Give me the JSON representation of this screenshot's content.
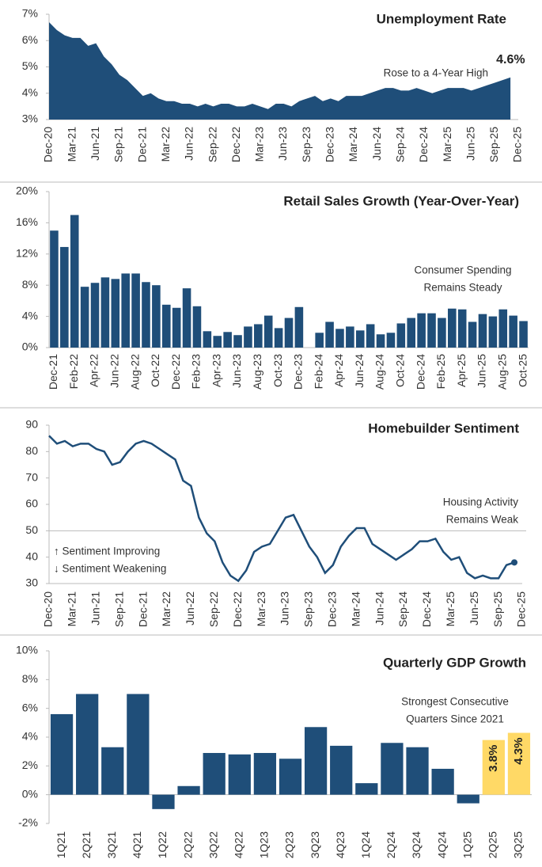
{
  "chart_data": [
    {
      "type": "area",
      "title": "Unemployment Rate",
      "color": "#1f4e79",
      "categories": [
        "Dec-20",
        null,
        null,
        "Mar-21",
        null,
        null,
        "Jun-21",
        null,
        null,
        "Sep-21",
        null,
        null,
        "Dec-21",
        null,
        null,
        "Mar-22",
        null,
        null,
        "Jun-22",
        null,
        null,
        "Sep-22",
        null,
        null,
        "Dec-22",
        null,
        null,
        "Mar-23",
        null,
        null,
        "Jun-23",
        null,
        null,
        "Sep-23",
        null,
        null,
        "Dec-23",
        null,
        null,
        "Mar-24",
        null,
        null,
        "Jun-24",
        null,
        null,
        "Sep-24",
        null,
        null,
        "Dec-24",
        null,
        null,
        "Mar-25",
        null,
        null,
        "Jun-25",
        null,
        null,
        "Sep-25",
        null,
        null,
        "Dec-25"
      ],
      "values": [
        6.7,
        6.4,
        6.2,
        6.1,
        6.1,
        5.8,
        5.9,
        5.4,
        5.1,
        4.7,
        4.5,
        4.2,
        3.9,
        4.0,
        3.8,
        3.7,
        3.7,
        3.6,
        3.6,
        3.5,
        3.6,
        3.5,
        3.6,
        3.6,
        3.5,
        3.5,
        3.6,
        3.5,
        3.4,
        3.6,
        3.6,
        3.5,
        3.7,
        3.8,
        3.9,
        3.7,
        3.8,
        3.7,
        3.9,
        3.9,
        3.9,
        4.0,
        4.1,
        4.2,
        4.2,
        4.1,
        4.1,
        4.2,
        4.1,
        4.0,
        4.1,
        4.2,
        4.2,
        4.2,
        4.1,
        4.2,
        4.3,
        4.4,
        4.5,
        4.6,
        null
      ],
      "value_labels": [
        null,
        null,
        null,
        null,
        null,
        null,
        null,
        null,
        null,
        null,
        null,
        null,
        null,
        null,
        null,
        null,
        null,
        null,
        null,
        null,
        null,
        null,
        null,
        null,
        null,
        null,
        null,
        null,
        null,
        null,
        null,
        null,
        null,
        null,
        null,
        null,
        null,
        null,
        null,
        null,
        null,
        null,
        null,
        null,
        null,
        null,
        null,
        null,
        null,
        null,
        null,
        null,
        null,
        null,
        null,
        null,
        null,
        null,
        null,
        "4.6%",
        null
      ],
      "ylim": [
        3,
        7
      ],
      "yticks": [
        {
          "value": 3,
          "label": "3%"
        },
        {
          "value": 4,
          "label": "4%"
        },
        {
          "value": 5,
          "label": "5%"
        },
        {
          "value": 6,
          "label": "6%"
        },
        {
          "value": 7,
          "label": "7%"
        }
      ],
      "annotations": [
        [
          "Rose to a 4-Year High"
        ]
      ]
    },
    {
      "type": "bar",
      "title": "Retail Sales Growth (Year-Over-Year)",
      "color": "#1f4e79",
      "categories": [
        "Dec-21",
        null,
        "Feb-22",
        null,
        "Apr-22",
        null,
        "Jun-22",
        null,
        "Aug-22",
        null,
        "Oct-22",
        null,
        "Dec-22",
        null,
        "Feb-23",
        null,
        "Apr-23",
        null,
        "Jun-23",
        null,
        "Aug-23",
        null,
        "Oct-23",
        null,
        "Dec-23",
        null,
        "Feb-24",
        null,
        "Apr-24",
        null,
        "Jun-24",
        null,
        "Aug-24",
        null,
        "Oct-24",
        null,
        "Dec-24",
        null,
        "Feb-25",
        null,
        "Apr-25",
        null,
        "Jun-25",
        null,
        "Aug-25",
        null,
        "Oct-25"
      ],
      "values": [
        15.0,
        12.9,
        17.0,
        7.8,
        8.3,
        9.0,
        8.8,
        9.5,
        9.5,
        8.4,
        8.0,
        5.5,
        5.1,
        7.6,
        5.3,
        2.1,
        1.5,
        2.0,
        1.6,
        2.7,
        3.0,
        4.1,
        2.5,
        3.8,
        5.2,
        null,
        1.9,
        3.3,
        2.4,
        2.7,
        2.2,
        3.0,
        1.7,
        1.9,
        3.1,
        3.8,
        4.4,
        4.4,
        3.8,
        5.0,
        4.9,
        3.3,
        4.3,
        4.0,
        4.9,
        4.1,
        3.4
      ],
      "ylim": [
        0,
        20
      ],
      "yticks": [
        {
          "value": 0,
          "label": "0%"
        },
        {
          "value": 4,
          "label": "4%"
        },
        {
          "value": 8,
          "label": "8%"
        },
        {
          "value": 12,
          "label": "12%"
        },
        {
          "value": 16,
          "label": "16%"
        },
        {
          "value": 20,
          "label": "20%"
        }
      ],
      "annotations": [
        [
          "Consumer Spending",
          "Remains Steady"
        ]
      ]
    },
    {
      "type": "line",
      "title": "Homebuilder Sentiment",
      "color": "#1f4e79",
      "categories": [
        "Dec-20",
        null,
        null,
        "Mar-21",
        null,
        null,
        "Jun-21",
        null,
        null,
        "Sep-21",
        null,
        null,
        "Dec-21",
        null,
        null,
        "Mar-22",
        null,
        null,
        "Jun-22",
        null,
        null,
        "Sep-22",
        null,
        null,
        "Dec-22",
        null,
        null,
        "Mar-23",
        null,
        null,
        "Jun-23",
        null,
        null,
        "Sep-23",
        null,
        null,
        "Dec-23",
        null,
        null,
        "Mar-24",
        null,
        null,
        "Jun-24",
        null,
        null,
        "Sep-24",
        null,
        null,
        "Dec-24",
        null,
        null,
        "Mar-25",
        null,
        null,
        "Jun-25",
        null,
        null,
        "Sep-25",
        null,
        null,
        "Dec-25"
      ],
      "values": [
        86,
        83,
        84,
        82,
        83,
        83,
        81,
        80,
        75,
        76,
        80,
        83,
        84,
        83,
        81,
        79,
        77,
        69,
        67,
        55,
        49,
        46,
        38,
        33,
        31,
        35,
        42,
        44,
        45,
        50,
        55,
        56,
        50,
        44,
        40,
        34,
        37,
        44,
        48,
        51,
        51,
        45,
        43,
        41,
        39,
        41,
        43,
        46,
        46,
        47,
        42,
        39,
        40,
        34,
        32,
        33,
        32,
        32,
        37,
        38,
        null
      ],
      "ylim": [
        30,
        90
      ],
      "yticks": [
        30,
        40,
        50,
        60,
        70,
        80,
        90
      ],
      "reference_line": 50,
      "annotations": [
        [
          "Housing Activity",
          "Remains Weak"
        ],
        [
          "↑ Sentiment Improving",
          "↓ Sentiment Weakening"
        ]
      ]
    },
    {
      "type": "bar",
      "title": "Quarterly GDP Growth",
      "categories": [
        "1Q21",
        "2Q21",
        "3Q21",
        "4Q21",
        "1Q22",
        "2Q22",
        "3Q22",
        "4Q22",
        "1Q23",
        "2Q23",
        "3Q23",
        "4Q23",
        "1Q24",
        "2Q24",
        "3Q24",
        "4Q24",
        "1Q25",
        "2Q25",
        "3Q25"
      ],
      "values": [
        5.6,
        7.0,
        3.3,
        7.0,
        -1.0,
        0.6,
        2.9,
        2.8,
        2.9,
        2.5,
        4.7,
        3.4,
        0.8,
        3.6,
        3.3,
        1.8,
        -0.6,
        3.8,
        4.3
      ],
      "colors": [
        "#1f4e79",
        "#1f4e79",
        "#1f4e79",
        "#1f4e79",
        "#1f4e79",
        "#1f4e79",
        "#1f4e79",
        "#1f4e79",
        "#1f4e79",
        "#1f4e79",
        "#1f4e79",
        "#1f4e79",
        "#1f4e79",
        "#1f4e79",
        "#1f4e79",
        "#1f4e79",
        "#1f4e79",
        "#ffd966",
        "#ffd966"
      ],
      "value_labels": [
        null,
        null,
        null,
        null,
        null,
        null,
        null,
        null,
        null,
        null,
        null,
        null,
        null,
        null,
        null,
        null,
        null,
        "3.8%",
        "4.3%"
      ],
      "ylim": [
        -2,
        10
      ],
      "yticks": [
        {
          "value": -2,
          "label": "-2%"
        },
        {
          "value": 0,
          "label": "0%"
        },
        {
          "value": 2,
          "label": "2%"
        },
        {
          "value": 4,
          "label": "4%"
        },
        {
          "value": 6,
          "label": "6%"
        },
        {
          "value": 8,
          "label": "8%"
        },
        {
          "value": 10,
          "label": "10%"
        }
      ],
      "annotations": [
        [
          "Strongest Consecutive",
          "Quarters Since 2021"
        ]
      ]
    }
  ]
}
